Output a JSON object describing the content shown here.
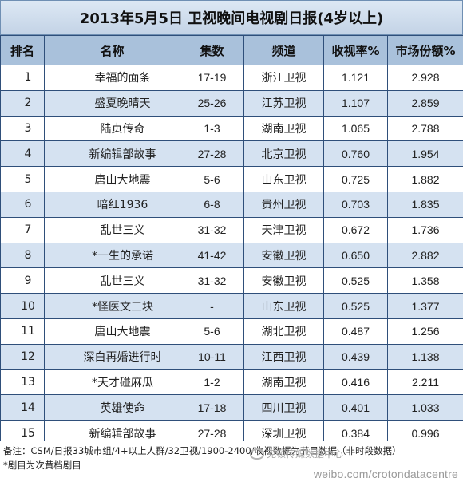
{
  "title": "2013年5月5日 卫视晚间电视剧日报(4岁以上)",
  "columns": [
    "排名",
    "名称",
    "集数",
    "频道",
    "收视率%",
    "市场份额%"
  ],
  "rows": [
    {
      "rank": "1",
      "name": "幸福的面条",
      "episodes": "17-19",
      "channel": "浙江卫视",
      "rating": "1.121",
      "share": "2.928"
    },
    {
      "rank": "2",
      "name": "盛夏晚晴天",
      "episodes": "25-26",
      "channel": "江苏卫视",
      "rating": "1.107",
      "share": "2.859"
    },
    {
      "rank": "3",
      "name": "陆贞传奇",
      "episodes": "1-3",
      "channel": "湖南卫视",
      "rating": "1.065",
      "share": "2.788"
    },
    {
      "rank": "4",
      "name": "新编辑部故事",
      "episodes": "27-28",
      "channel": "北京卫视",
      "rating": "0.760",
      "share": "1.954"
    },
    {
      "rank": "5",
      "name": "唐山大地震",
      "episodes": "5-6",
      "channel": "山东卫视",
      "rating": "0.725",
      "share": "1.882"
    },
    {
      "rank": "6",
      "name": "暗红1936",
      "episodes": "6-8",
      "channel": "贵州卫视",
      "rating": "0.703",
      "share": "1.835"
    },
    {
      "rank": "7",
      "name": "乱世三义",
      "episodes": "31-32",
      "channel": "天津卫视",
      "rating": "0.672",
      "share": "1.736"
    },
    {
      "rank": "8",
      "name": "*一生的承诺",
      "episodes": "41-42",
      "channel": "安徽卫视",
      "rating": "0.650",
      "share": "2.882"
    },
    {
      "rank": "9",
      "name": "乱世三义",
      "episodes": "31-32",
      "channel": "安徽卫视",
      "rating": "0.525",
      "share": "1.358"
    },
    {
      "rank": "10",
      "name": "*怪医文三块",
      "episodes": "-",
      "channel": "山东卫视",
      "rating": "0.525",
      "share": "1.377"
    },
    {
      "rank": "11",
      "name": "唐山大地震",
      "episodes": "5-6",
      "channel": "湖北卫视",
      "rating": "0.487",
      "share": "1.256"
    },
    {
      "rank": "12",
      "name": "深白再婚进行时",
      "episodes": "10-11",
      "channel": "江西卫视",
      "rating": "0.439",
      "share": "1.138"
    },
    {
      "rank": "13",
      "name": "*天才碰麻瓜",
      "episodes": "1-2",
      "channel": "湖南卫视",
      "rating": "0.416",
      "share": "2.211"
    },
    {
      "rank": "14",
      "name": "英雄使命",
      "episodes": "17-18",
      "channel": "四川卫视",
      "rating": "0.401",
      "share": "1.033"
    },
    {
      "rank": "15",
      "name": "新编辑部故事",
      "episodes": "27-28",
      "channel": "深圳卫视",
      "rating": "0.384",
      "share": "0.996"
    }
  ],
  "footer": {
    "note_line1": "备注：CSM/日报33城市组/4+以上人群/32卫视/1900-2400/收视数据为节目数据（非时段数据）",
    "note_line2": "*剧目为次黄档剧目"
  },
  "watermark": {
    "brand": "克顿传媒数据中心",
    "url": "weibo.com/crotondatacentre"
  }
}
